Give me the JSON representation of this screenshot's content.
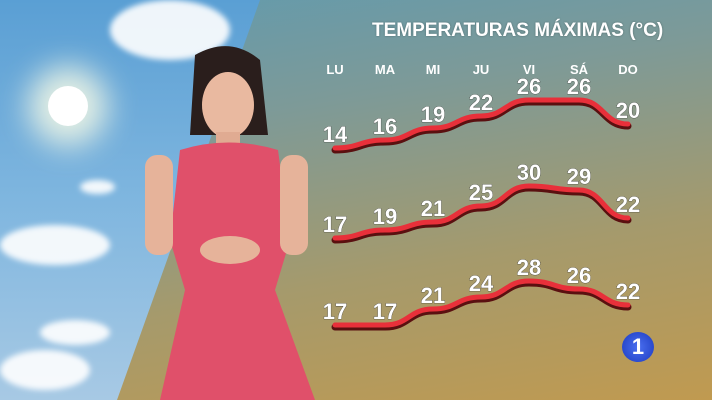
{
  "chart_data": {
    "type": "line",
    "title": "TEMPERATURAS MÁXIMAS (°C)",
    "categories": [
      "LU",
      "MA",
      "MI",
      "JU",
      "VI",
      "SÁ",
      "DO"
    ],
    "series": [
      {
        "values": [
          14,
          16,
          19,
          22,
          26,
          26,
          20
        ]
      },
      {
        "values": [
          17,
          19,
          21,
          25,
          30,
          29,
          22
        ]
      },
      {
        "values": [
          17,
          17,
          21,
          24,
          28,
          26,
          22
        ]
      }
    ],
    "colors": {
      "line": "#e8303a",
      "shadow": "#5a1010"
    }
  },
  "logo": {
    "text": "1"
  }
}
